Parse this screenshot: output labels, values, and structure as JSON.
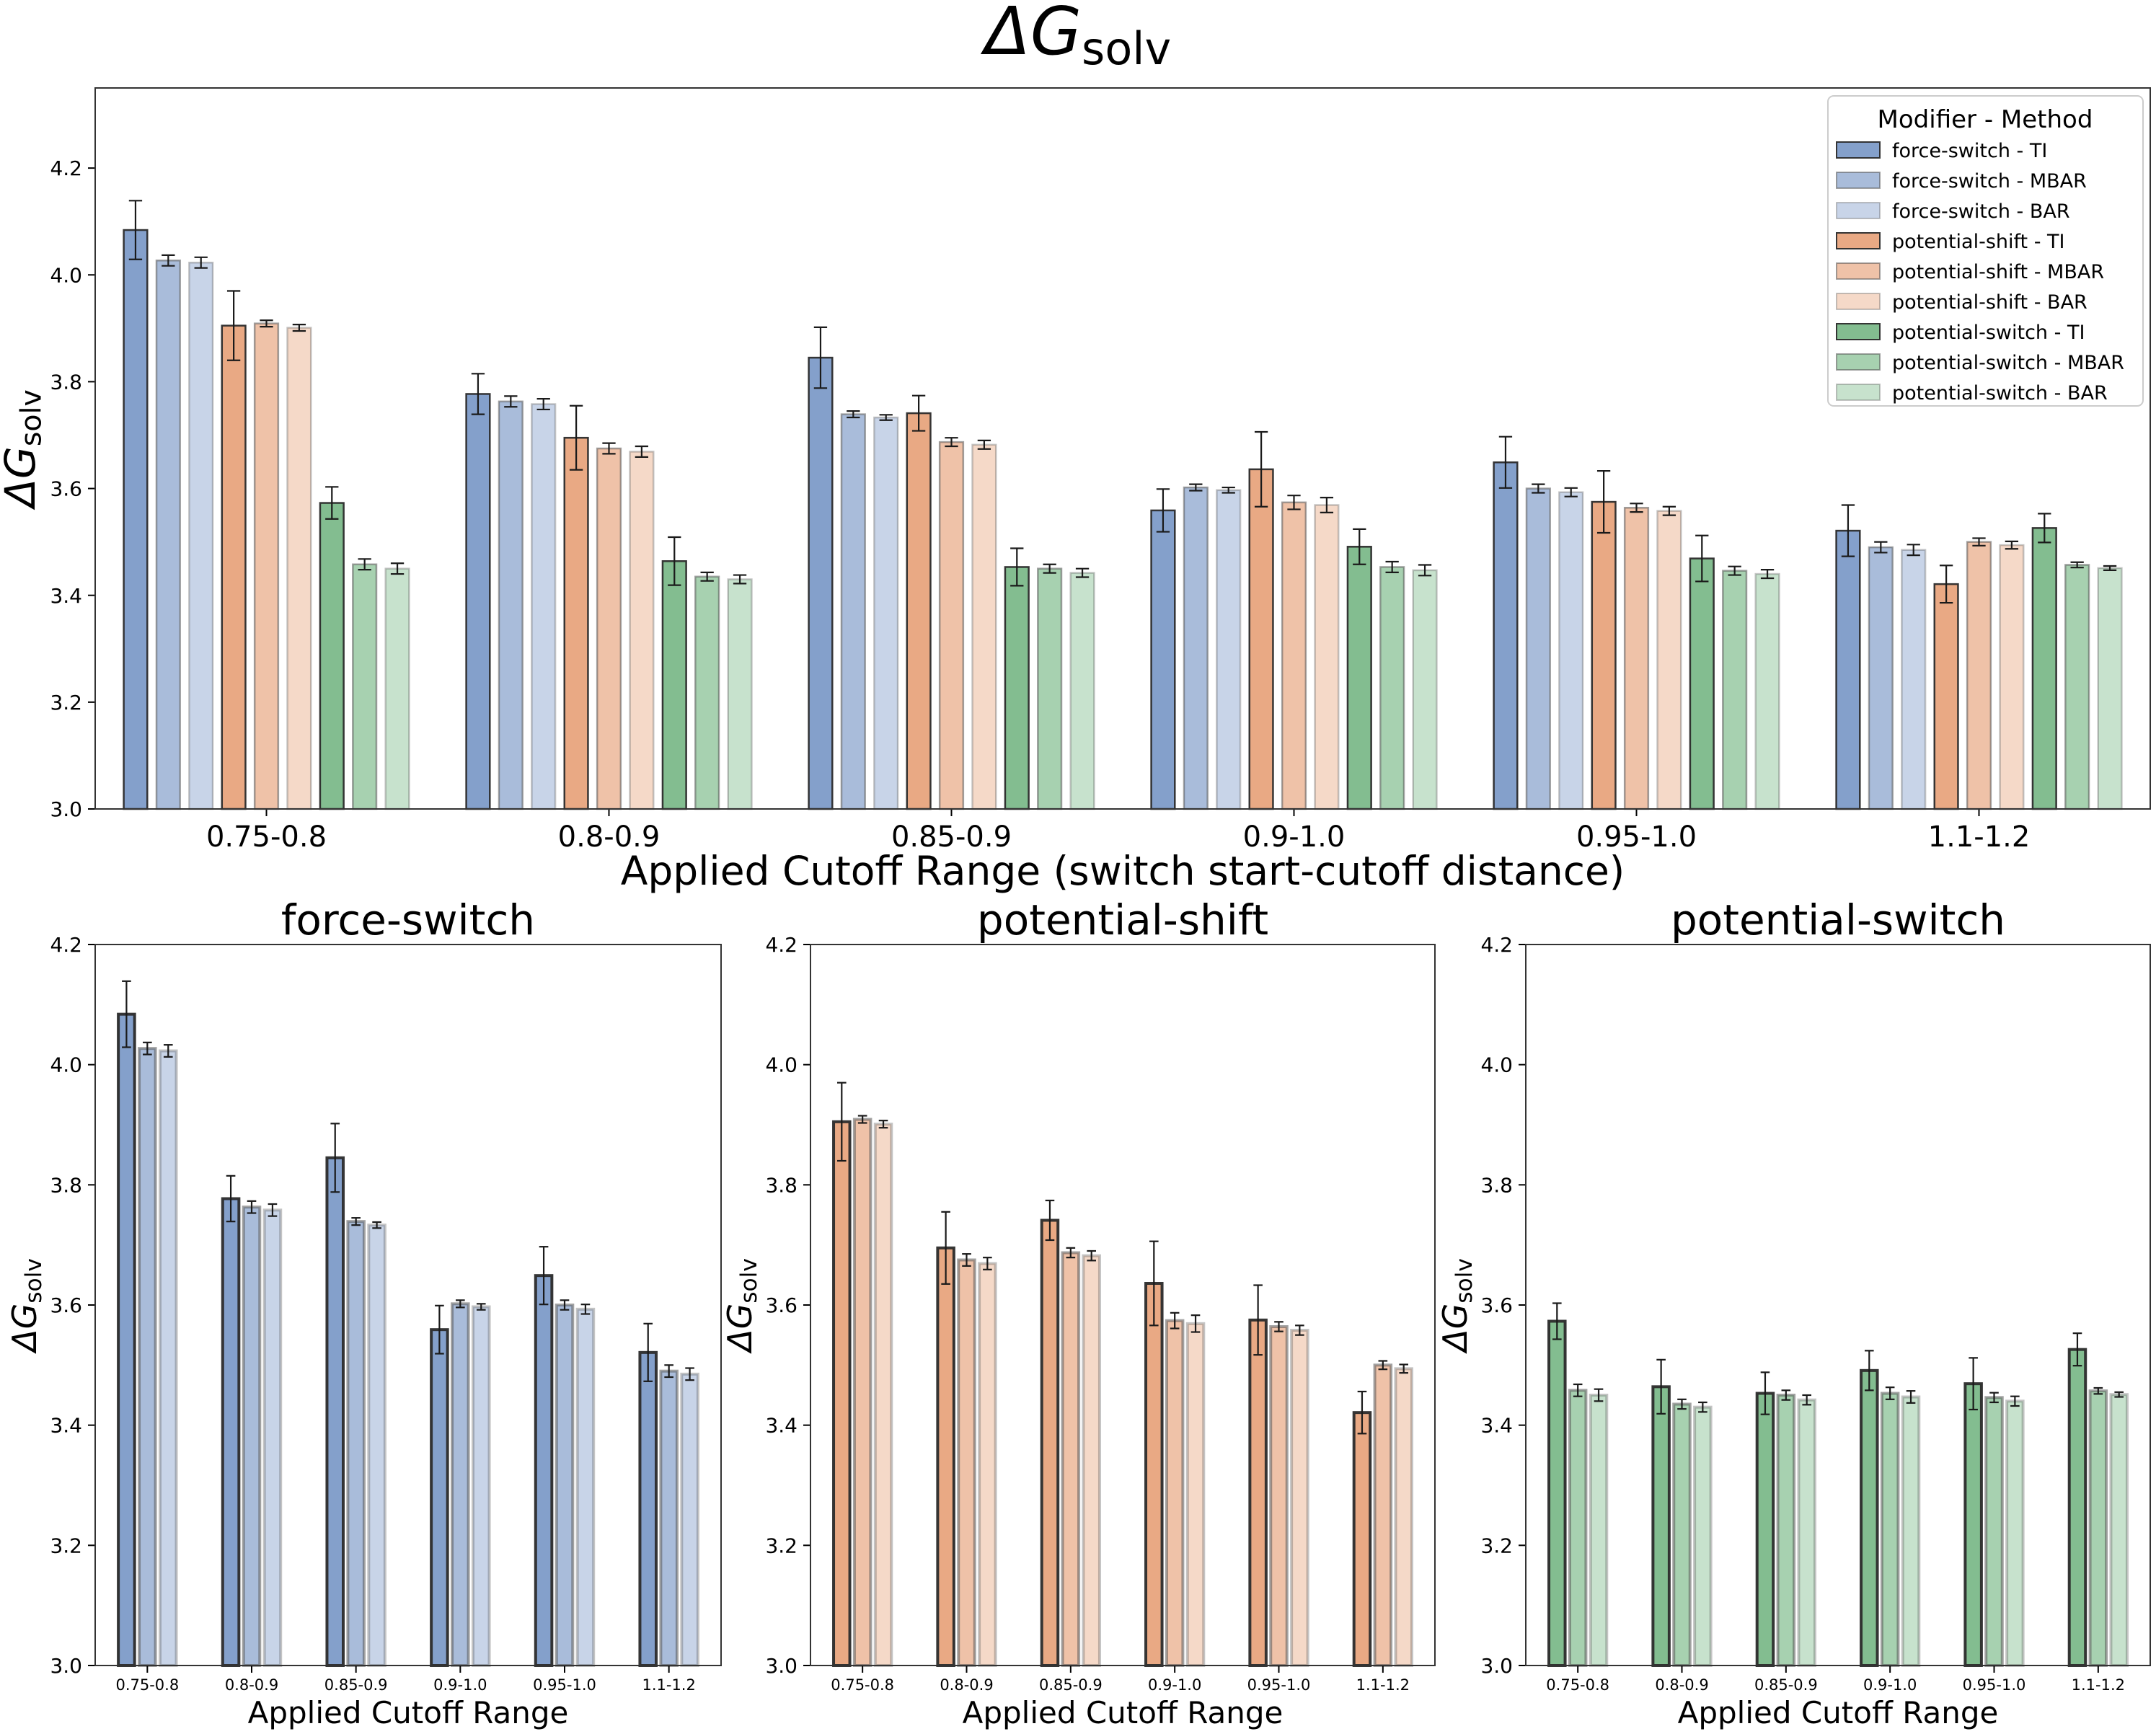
{
  "figure": {
    "title_symbol": "ΔG",
    "title_subscript": "solv"
  },
  "colors": {
    "force-switch": "#6f8fc2",
    "potential-shift": "#e59a6e",
    "potential-switch": "#6db27c",
    "method_alpha": {
      "TI": 0.85,
      "MBAR": 0.6,
      "BAR": 0.38
    },
    "edge_dark": "#2b2b2b",
    "error_bar": "#1a1a1a"
  },
  "legend": {
    "title": "Modifier - Method",
    "entries": [
      "force-switch - TI",
      "force-switch - MBAR",
      "force-switch - BAR",
      "potential-shift - TI",
      "potential-shift - MBAR",
      "potential-shift - BAR",
      "potential-switch - TI",
      "potential-switch - MBAR",
      "potential-switch - BAR"
    ]
  },
  "chart_data": [
    {
      "id": "main",
      "type": "bar",
      "title": "ΔGsolv",
      "xlabel": "Applied Cutoff Range (switch start-cutoff distance)",
      "ylabel_symbol": "ΔG",
      "ylabel_subscript": "solv",
      "ylim": [
        3.0,
        4.35
      ],
      "yticks": [
        "3.0",
        "3.2",
        "3.4",
        "3.6",
        "3.8",
        "4.0",
        "4.2"
      ],
      "categories": [
        "0.75-0.8",
        "0.8-0.9",
        "0.85-0.9",
        "0.9-1.0",
        "0.95-1.0",
        "1.1-1.2"
      ],
      "legend_position": "top-right",
      "series": [
        {
          "name": "force-switch - TI",
          "modifier": "force-switch",
          "method": "TI",
          "values": [
            4.084,
            3.777,
            3.845,
            3.559,
            3.649,
            3.521
          ],
          "errors": [
            0.055,
            0.038,
            0.057,
            0.04,
            0.048,
            0.048
          ]
        },
        {
          "name": "force-switch - MBAR",
          "modifier": "force-switch",
          "method": "MBAR",
          "values": [
            4.027,
            3.763,
            3.739,
            3.602,
            3.6,
            3.49
          ],
          "errors": [
            0.01,
            0.01,
            0.006,
            0.006,
            0.008,
            0.01
          ]
        },
        {
          "name": "force-switch - BAR",
          "modifier": "force-switch",
          "method": "BAR",
          "values": [
            4.023,
            3.758,
            3.733,
            3.597,
            3.593,
            3.485
          ],
          "errors": [
            0.01,
            0.01,
            0.005,
            0.005,
            0.008,
            0.01
          ]
        },
        {
          "name": "potential-shift - TI",
          "modifier": "potential-shift",
          "method": "TI",
          "values": [
            3.905,
            3.695,
            3.741,
            3.636,
            3.575,
            3.421
          ],
          "errors": [
            0.065,
            0.06,
            0.033,
            0.07,
            0.058,
            0.035
          ]
        },
        {
          "name": "potential-shift - MBAR",
          "modifier": "potential-shift",
          "method": "MBAR",
          "values": [
            3.909,
            3.675,
            3.687,
            3.574,
            3.564,
            3.5
          ],
          "errors": [
            0.006,
            0.01,
            0.008,
            0.013,
            0.008,
            0.007
          ]
        },
        {
          "name": "potential-shift - BAR",
          "modifier": "potential-shift",
          "method": "BAR",
          "values": [
            3.901,
            3.669,
            3.682,
            3.569,
            3.558,
            3.494
          ],
          "errors": [
            0.006,
            0.01,
            0.008,
            0.014,
            0.008,
            0.007
          ]
        },
        {
          "name": "potential-switch - TI",
          "modifier": "potential-switch",
          "method": "TI",
          "values": [
            3.573,
            3.464,
            3.453,
            3.491,
            3.469,
            3.526
          ],
          "errors": [
            0.03,
            0.045,
            0.035,
            0.033,
            0.043,
            0.027
          ]
        },
        {
          "name": "potential-switch - MBAR",
          "modifier": "potential-switch",
          "method": "MBAR",
          "values": [
            3.458,
            3.435,
            3.45,
            3.453,
            3.446,
            3.457
          ],
          "errors": [
            0.01,
            0.008,
            0.008,
            0.01,
            0.008,
            0.005
          ]
        },
        {
          "name": "potential-switch - BAR",
          "modifier": "potential-switch",
          "method": "BAR",
          "values": [
            3.45,
            3.43,
            3.442,
            3.447,
            3.44,
            3.451
          ],
          "errors": [
            0.01,
            0.008,
            0.008,
            0.01,
            0.008,
            0.004
          ]
        }
      ]
    },
    {
      "id": "force-switch",
      "type": "bar",
      "title": "force-switch",
      "xlabel": "Applied Cutoff Range",
      "ylabel_symbol": "ΔG",
      "ylabel_subscript": "solv",
      "ylim": [
        3.0,
        4.2
      ],
      "yticks": [
        "3.0",
        "3.2",
        "3.4",
        "3.6",
        "3.8",
        "4.0",
        "4.2"
      ],
      "categories": [
        "0.75-0.8",
        "0.8-0.9",
        "0.85-0.9",
        "0.9-1.0",
        "0.95-1.0",
        "1.1-1.2"
      ],
      "modifier": "force-switch",
      "series_names": [
        "force-switch - TI",
        "force-switch - MBAR",
        "force-switch - BAR"
      ]
    },
    {
      "id": "potential-shift",
      "type": "bar",
      "title": "potential-shift",
      "xlabel": "Applied Cutoff Range",
      "ylabel_symbol": "ΔG",
      "ylabel_subscript": "solv",
      "ylim": [
        3.0,
        4.2
      ],
      "yticks": [
        "3.0",
        "3.2",
        "3.4",
        "3.6",
        "3.8",
        "4.0",
        "4.2"
      ],
      "categories": [
        "0.75-0.8",
        "0.8-0.9",
        "0.85-0.9",
        "0.9-1.0",
        "0.95-1.0",
        "1.1-1.2"
      ],
      "modifier": "potential-shift",
      "series_names": [
        "potential-shift - TI",
        "potential-shift - MBAR",
        "potential-shift - BAR"
      ]
    },
    {
      "id": "potential-switch",
      "type": "bar",
      "title": "potential-switch",
      "xlabel": "Applied Cutoff Range",
      "ylabel_symbol": "ΔG",
      "ylabel_subscript": "solv",
      "ylim": [
        3.0,
        4.2
      ],
      "yticks": [
        "3.0",
        "3.2",
        "3.4",
        "3.6",
        "3.8",
        "4.0",
        "4.2"
      ],
      "categories": [
        "0.75-0.8",
        "0.8-0.9",
        "0.85-0.9",
        "0.9-1.0",
        "0.95-1.0",
        "1.1-1.2"
      ],
      "modifier": "potential-switch",
      "series_names": [
        "potential-switch - TI",
        "potential-switch - MBAR",
        "potential-switch - BAR"
      ]
    }
  ]
}
